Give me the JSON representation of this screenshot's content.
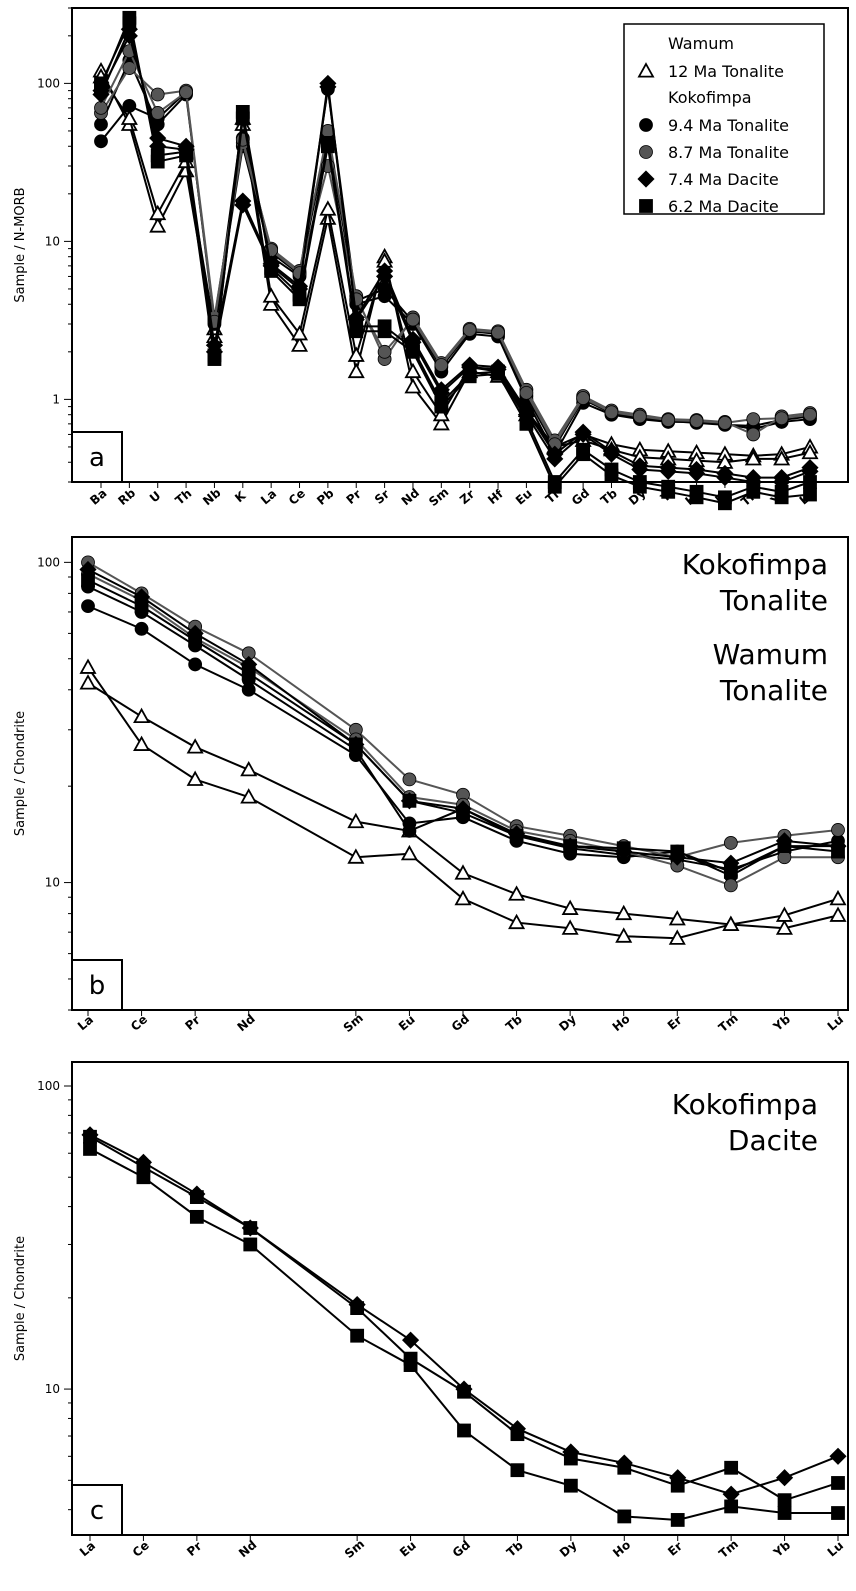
{
  "chart_data": [
    {
      "type": "line",
      "panel_label": "a",
      "ylabel": "Sample / N-MORB",
      "yscale": "log",
      "ylim": [
        0.3,
        300
      ],
      "yticks": [
        {
          "v": 1,
          "label": "1"
        },
        {
          "v": 10,
          "label": "10"
        },
        {
          "v": 100,
          "label": "100"
        }
      ],
      "categories": [
        "Ba",
        "Rb",
        "U",
        "Th",
        "Nb",
        "K",
        "La",
        "Ce",
        "Pb",
        "Pr",
        "Sr",
        "Nd",
        "Sm",
        "Zr",
        "Hf",
        "Eu",
        "Ti",
        "Gd",
        "Tb",
        "Dy",
        "Y",
        "Ho",
        "Er",
        "Tm",
        "Yb",
        "Lu"
      ],
      "legend": {
        "placement": "top-right",
        "groups": [
          {
            "heading": "Wamum",
            "entries": [
              {
                "label": "12 Ma Tonalite",
                "marker": "triangle-open",
                "color": "#000000"
              }
            ]
          },
          {
            "heading": "Kokofimpa",
            "entries": [
              {
                "label": "9.4 Ma Tonalite",
                "marker": "circle",
                "color": "#000000"
              },
              {
                "label": "8.7 Ma Tonalite",
                "marker": "circle",
                "color": "#555555"
              },
              {
                "label": "7.4 Ma Dacite",
                "marker": "diamond",
                "color": "#000000"
              },
              {
                "label": "6.2 Ma Dacite",
                "marker": "square",
                "color": "#000000"
              }
            ]
          }
        ]
      },
      "series": [
        {
          "group": "12 Ma Tonalite",
          "marker": "triangle-open",
          "color": "#000000",
          "values": [
            120,
            55,
            12.5,
            28,
            2.5,
            55,
            4.0,
            2.2,
            14,
            1.5,
            8.0,
            1.2,
            0.7,
            1.5,
            1.4,
            0.8,
            0.5,
            0.6,
            0.52,
            0.48,
            0.47,
            0.46,
            0.45,
            0.44,
            0.45,
            0.5
          ]
        },
        {
          "group": "12 Ma Tonalite",
          "marker": "triangle-open",
          "color": "#000000",
          "values": [
            110,
            60,
            15,
            32,
            2.8,
            60,
            4.5,
            2.6,
            16,
            1.9,
            7.5,
            1.5,
            0.8,
            1.6,
            1.5,
            0.85,
            0.5,
            0.55,
            0.48,
            0.43,
            0.42,
            0.41,
            0.4,
            0.42,
            0.42,
            0.46
          ]
        },
        {
          "group": "9.4 Ma Tonalite",
          "marker": "circle",
          "color": "#000000",
          "values": [
            43,
            72,
            60,
            88,
            3.0,
            40,
            8.0,
            6.0,
            92,
            4.0,
            4.5,
            3.0,
            1.5,
            2.6,
            2.5,
            1.0,
            0.45,
            0.95,
            0.8,
            0.75,
            0.72,
            0.72,
            0.7,
            0.65,
            0.72,
            0.75
          ]
        },
        {
          "group": "9.4 Ma Tonalite",
          "marker": "circle",
          "color": "#000000",
          "values": [
            55,
            140,
            55,
            85,
            3.2,
            45,
            8.5,
            6.2,
            45,
            4.2,
            5.0,
            3.1,
            1.6,
            2.7,
            2.6,
            1.05,
            0.5,
            1.0,
            0.82,
            0.76,
            0.73,
            0.71,
            0.69,
            0.68,
            0.74,
            0.78
          ]
        },
        {
          "group": "8.7 Ma Tonalite",
          "marker": "circle",
          "color": "#555555",
          "values": [
            65,
            125,
            85,
            90,
            3.3,
            42,
            9.0,
            6.5,
            50,
            4.5,
            1.8,
            3.3,
            1.7,
            2.8,
            2.7,
            1.15,
            0.55,
            1.05,
            0.85,
            0.8,
            0.75,
            0.74,
            0.72,
            0.6,
            0.78,
            0.82
          ]
        },
        {
          "group": "8.7 Ma Tonalite",
          "marker": "circle",
          "color": "#555555",
          "values": [
            70,
            160,
            65,
            88,
            3.1,
            44,
            8.8,
            6.3,
            30,
            4.3,
            2.0,
            3.2,
            1.65,
            2.75,
            2.65,
            1.1,
            0.52,
            1.02,
            0.83,
            0.78,
            0.74,
            0.73,
            0.71,
            0.75,
            0.76,
            0.8
          ]
        },
        {
          "group": "7.4 Ma Dacite",
          "marker": "diamond",
          "color": "#000000",
          "values": [
            85,
            220,
            40,
            38,
            2.0,
            17,
            7.0,
            5.0,
            100,
            3.2,
            6.0,
            2.3,
            1.1,
            1.6,
            1.55,
            0.8,
            0.42,
            0.6,
            0.45,
            0.36,
            0.35,
            0.34,
            0.32,
            0.3,
            0.3,
            0.35
          ]
        },
        {
          "group": "7.4 Ma Dacite",
          "marker": "diamond",
          "color": "#000000",
          "values": [
            90,
            200,
            45,
            40,
            2.2,
            18,
            7.2,
            5.2,
            95,
            3.3,
            6.5,
            2.4,
            1.15,
            1.65,
            1.6,
            0.85,
            0.45,
            0.62,
            0.47,
            0.38,
            0.37,
            0.36,
            0.34,
            0.32,
            0.32,
            0.37
          ]
        },
        {
          "group": "6.2 Ma Dacite",
          "marker": "square",
          "color": "#000000",
          "values": [
            95,
            260,
            32,
            35,
            1.8,
            66,
            6.5,
            4.3,
            40,
            2.7,
            2.7,
            2.0,
            0.9,
            1.4,
            1.45,
            0.7,
            0.28,
            0.45,
            0.33,
            0.28,
            0.26,
            0.24,
            0.22,
            0.26,
            0.24,
            0.25
          ]
        },
        {
          "group": "6.2 Ma Dacite",
          "marker": "square",
          "color": "#000000",
          "values": [
            100,
            240,
            35,
            37,
            1.9,
            60,
            6.8,
            4.6,
            42,
            2.9,
            2.9,
            2.1,
            0.95,
            1.45,
            1.5,
            0.75,
            0.3,
            0.48,
            0.36,
            0.3,
            0.28,
            0.26,
            0.24,
            0.28,
            0.26,
            0.3
          ]
        }
      ]
    },
    {
      "type": "line",
      "panel_label": "b",
      "ylabel": "Sample / Chondrite",
      "yscale": "log",
      "ylim": [
        4,
        120
      ],
      "yticks": [
        {
          "v": 10,
          "label": "10"
        },
        {
          "v": 100,
          "label": "100"
        }
      ],
      "categories": [
        "La",
        "Ce",
        "Pr",
        "Nd",
        "Sm",
        "Eu",
        "Gd",
        "Tb",
        "Dy",
        "Ho",
        "Er",
        "Tm",
        "Yb",
        "Lu"
      ],
      "category_positions": [
        0,
        1,
        2,
        3,
        5,
        6,
        7,
        8,
        9,
        10,
        11,
        12,
        13,
        14
      ],
      "annotations": [
        {
          "lines": [
            "Kokofimpa",
            "Tonalite"
          ]
        },
        {
          "lines": [
            "Wamum",
            "Tonalite"
          ]
        }
      ],
      "series": [
        {
          "group": "12 Ma Tonalite",
          "marker": "triangle-open",
          "color": "#000000",
          "values": [
            47,
            27,
            21,
            18.5,
            12,
            12.3,
            8.9,
            7.5,
            7.2,
            6.8,
            6.7,
            7.4,
            7.2,
            7.9
          ]
        },
        {
          "group": "12 Ma Tonalite",
          "marker": "triangle-open",
          "color": "#000000",
          "values": [
            42,
            33,
            26.5,
            22.5,
            15.5,
            14.5,
            10.7,
            9.2,
            8.3,
            8.0,
            7.7,
            7.4,
            7.9,
            8.9
          ]
        },
        {
          "group": "9.4 Ma Tonalite",
          "marker": "circle",
          "color": "#000000",
          "values": [
            73,
            62,
            48,
            40,
            25,
            15.3,
            16,
            13.5,
            12.3,
            12,
            12.5,
            10.5,
            13,
            13
          ]
        },
        {
          "group": "9.4 Ma Tonalite",
          "marker": "circle",
          "color": "#000000",
          "values": [
            84,
            70,
            55,
            43,
            26,
            14.5,
            17,
            14,
            12.8,
            12.2,
            11.8,
            11,
            12.5,
            13.5
          ]
        },
        {
          "group": "8.7 Ma Tonalite",
          "marker": "circle",
          "color": "#555555",
          "values": [
            100,
            80,
            63,
            52,
            30,
            21,
            18.8,
            15,
            14,
            13,
            12,
            13.3,
            14,
            14.6
          ]
        },
        {
          "group": "8.7 Ma Tonalite",
          "marker": "circle",
          "color": "#555555",
          "values": [
            92,
            76,
            58,
            47,
            28,
            18.5,
            17.5,
            14.5,
            13.5,
            12.5,
            11.3,
            9.8,
            12,
            12
          ]
        },
        {
          "group": "7.4 Ma Dacite",
          "marker": "diamond",
          "color": "#000000",
          "values": [
            95,
            78,
            60,
            48,
            27,
            18,
            17,
            14.2,
            13,
            12.5,
            12,
            11.5,
            13.5,
            13
          ]
        },
        {
          "group": "6.2 Ma Dacite",
          "marker": "square",
          "color": "#000000",
          "values": [
            88,
            73,
            57,
            45,
            27,
            18,
            16.5,
            14,
            13,
            12.8,
            12.5,
            10.8,
            13,
            12.5
          ]
        }
      ]
    },
    {
      "type": "line",
      "panel_label": "c",
      "ylabel": "Sample / Chondrite",
      "yscale": "log",
      "ylim": [
        3.3,
        120
      ],
      "yticks": [
        {
          "v": 10,
          "label": "10"
        },
        {
          "v": 100,
          "label": "100"
        }
      ],
      "categories": [
        "La",
        "Ce",
        "Pr",
        "Nd",
        "Sm",
        "Eu",
        "Gd",
        "Tb",
        "Dy",
        "Ho",
        "Er",
        "Tm",
        "Yb",
        "Lu"
      ],
      "category_positions": [
        0,
        1,
        2,
        3,
        5,
        6,
        7,
        8,
        9,
        10,
        11,
        12,
        13,
        14
      ],
      "annotations": [
        {
          "lines": [
            "Kokofimpa",
            "Dacite"
          ]
        }
      ],
      "series": [
        {
          "group": "7.4 Ma Dacite",
          "marker": "diamond",
          "color": "#000000",
          "values": [
            69,
            56,
            44,
            34,
            19,
            14.5,
            10,
            7.4,
            6.2,
            5.7,
            5.1,
            4.5,
            5.1,
            6.0
          ]
        },
        {
          "group": "7.4 Ma Dacite",
          "marker": "square",
          "color": "#000000",
          "values": [
            68,
            54,
            43,
            34,
            18.5,
            12.6,
            9.8,
            7.1,
            5.9,
            5.5,
            4.8,
            5.5,
            4.3,
            4.9
          ]
        },
        {
          "group": "6.2 Ma Dacite",
          "marker": "square",
          "color": "#000000",
          "values": [
            62,
            50,
            37,
            30,
            15,
            12,
            7.3,
            5.4,
            4.8,
            3.8,
            3.7,
            4.1,
            3.9,
            3.9
          ]
        }
      ]
    }
  ]
}
